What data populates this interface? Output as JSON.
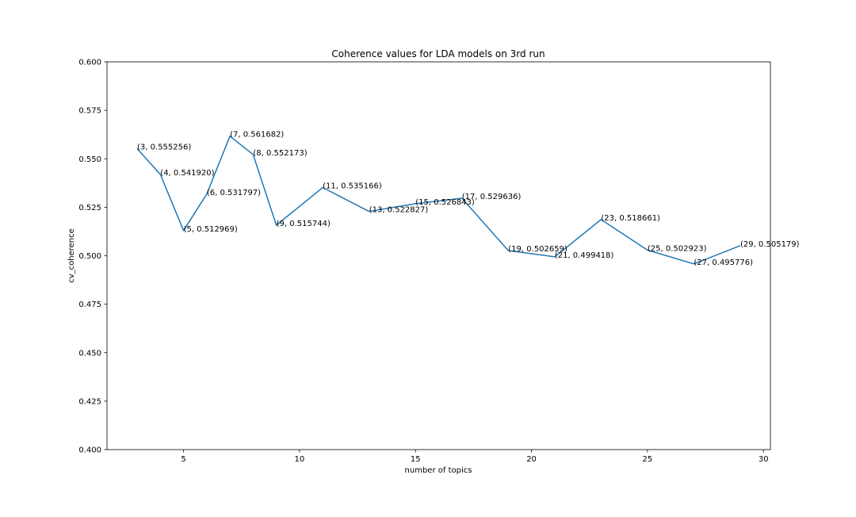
{
  "chart_data": {
    "type": "line",
    "title": "Coherence values for LDA models on 3rd run",
    "xlabel": "number of topics",
    "ylabel": "cv_coherence",
    "xlim": [
      1.7,
      30.3
    ],
    "ylim": [
      0.4,
      0.6
    ],
    "xticks": [
      5,
      10,
      15,
      20,
      25,
      30
    ],
    "xtick_labels": [
      "5",
      "10",
      "15",
      "20",
      "25",
      "30"
    ],
    "yticks": [
      0.4,
      0.425,
      0.45,
      0.475,
      0.5,
      0.525,
      0.55,
      0.575,
      0.6
    ],
    "ytick_labels": [
      "0.400",
      "0.425",
      "0.450",
      "0.475",
      "0.500",
      "0.525",
      "0.550",
      "0.575",
      "0.600"
    ],
    "grid": false,
    "line_color": "#1f77b4",
    "x": [
      3,
      4,
      5,
      6,
      7,
      8,
      9,
      11,
      13,
      15,
      17,
      19,
      21,
      23,
      25,
      27,
      29
    ],
    "y": [
      0.555256,
      0.54192,
      0.512969,
      0.531797,
      0.561682,
      0.552173,
      0.515744,
      0.535166,
      0.522827,
      0.526843,
      0.529636,
      0.502659,
      0.499418,
      0.518661,
      0.502923,
      0.495776,
      0.505179
    ],
    "point_labels": [
      "(3, 0.555256)",
      "(4, 0.541920)",
      "(5, 0.512969)",
      "(6, 0.531797)",
      "(7, 0.561682)",
      "(8, 0.552173)",
      "(9, 0.515744)",
      "(11, 0.535166)",
      "(13, 0.522827)",
      "(15, 0.526843)",
      "(17, 0.529636)",
      "(19, 0.502659)",
      "(21, 0.499418)",
      "(23, 0.518661)",
      "(25, 0.502923)",
      "(27, 0.495776)",
      "(29, 0.505179)"
    ]
  }
}
